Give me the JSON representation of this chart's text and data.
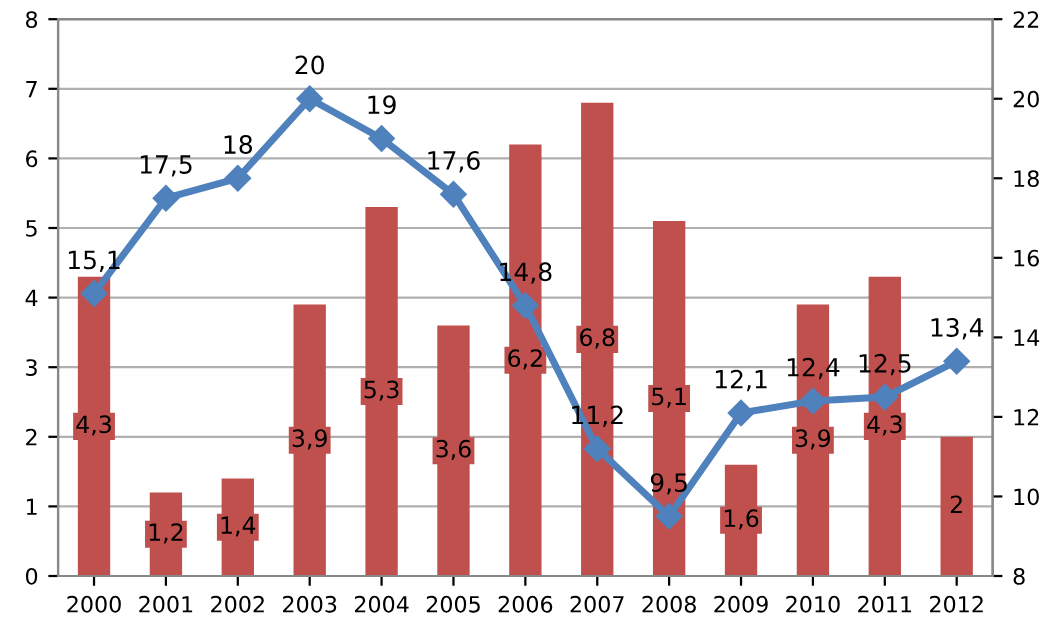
{
  "chart_data": {
    "type": "bar",
    "categories": [
      "2000",
      "2001",
      "2002",
      "2003",
      "2004",
      "2005",
      "2006",
      "2007",
      "2008",
      "2009",
      "2010",
      "2011",
      "2012"
    ],
    "series": [
      {
        "color": "#c0504d",
        "values": [
          4.3,
          1.2,
          1.4,
          3.9,
          5.3,
          3.6,
          6.2,
          6.8,
          5.1,
          1.6,
          3.9,
          4.3,
          2
        ],
        "value_labels": [
          "4,3",
          "1,2",
          "1,4",
          "3,9",
          "5,3",
          "3,6",
          "6,2",
          "6,8",
          "5,1",
          "1,6",
          "3,9",
          "4,3",
          "2"
        ]
      },
      {
        "type": "line",
        "axis": "y2",
        "color": "#4f81bd",
        "marker": "diamond",
        "values": [
          15.1,
          17.5,
          18,
          20,
          19,
          17.6,
          14.8,
          11.2,
          9.5,
          12.1,
          12.4,
          12.5,
          13.4
        ],
        "value_labels": [
          "15,1",
          "17,5",
          "18",
          "20",
          "19",
          "17,6",
          "14,8",
          "11,2",
          "9,5",
          "12,1",
          "12,4",
          "12,5",
          "13,4"
        ]
      }
    ],
    "ylim": [
      0,
      8
    ],
    "yticks": [
      0,
      1,
      2,
      3,
      4,
      5,
      6,
      7,
      8
    ],
    "y2lim": [
      8,
      22
    ],
    "y2ticks": [
      8,
      10,
      12,
      14,
      16,
      18,
      20,
      22
    ],
    "grid": "y"
  }
}
